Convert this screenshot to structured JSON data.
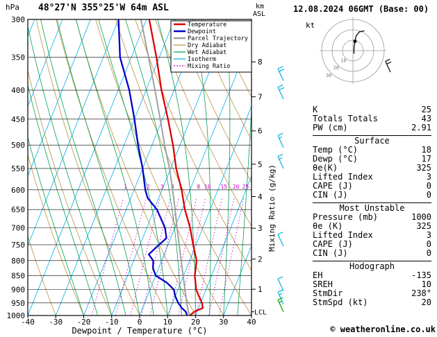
{
  "header": {
    "pressure_unit_label": "hPa",
    "station_title": "48°27'N 355°25'W 64m ASL",
    "datetime_title": "12.08.2024 06GMT (Base: 00)"
  },
  "axes": {
    "pressure_ticks": [
      300,
      350,
      400,
      450,
      500,
      550,
      600,
      650,
      700,
      750,
      800,
      850,
      900,
      950,
      1000
    ],
    "temp_ticks": [
      -40,
      -30,
      -20,
      -10,
      0,
      10,
      20,
      30,
      40
    ],
    "x_label": "Dewpoint / Temperature (°C)",
    "km_label_top": "km",
    "km_label_sub": "ASL",
    "km_ticks": [
      8,
      7,
      6,
      5,
      4,
      3,
      2,
      1
    ],
    "lcl_label": "LCL",
    "mixing_axis_label": "Mixing Ratio (g/kg)"
  },
  "legend": {
    "items": [
      {
        "label": "Temperature",
        "color_key": "temperature",
        "thick": true
      },
      {
        "label": "Dewpoint",
        "color_key": "dewpoint",
        "thick": true
      },
      {
        "label": "Parcel Trajectory",
        "color_key": "parcel",
        "thick": true
      },
      {
        "label": "Dry Adiabat",
        "color_key": "dry_adiabat"
      },
      {
        "label": "Wet Adiabat",
        "color_key": "wet_adiabat"
      },
      {
        "label": "Isotherm",
        "color_key": "isotherm"
      },
      {
        "label": "Mixing Ratio",
        "color_key": "mixing_ratio",
        "dotted": true
      }
    ]
  },
  "colors": {
    "temperature": "#dd0000",
    "dewpoint": "#0000cc",
    "parcel": "#a0a0a0",
    "dry_adiabat": "#bb8f3c",
    "wet_adiabat": "#00a050",
    "isotherm": "#00b0f0",
    "mixing_ratio": "#cc00cc",
    "wind_barb": "#00b0e0",
    "surface_wind_barb": "#00a000",
    "hodograph_grid": "#999999",
    "frame": "#000000"
  },
  "chart_data": {
    "type": "line",
    "subtype": "skew-T log-p thermodynamic sounding",
    "units": "points are [pressure_hPa, temperature_C]",
    "pressure_range": [
      300,
      1000
    ],
    "temperature_range": [
      -40,
      40
    ],
    "temperature_points": [
      [
        1000,
        18
      ],
      [
        985,
        19
      ],
      [
        970,
        21.5
      ],
      [
        950,
        20.5
      ],
      [
        925,
        18.5
      ],
      [
        900,
        16.5
      ],
      [
        850,
        14
      ],
      [
        800,
        12.5
      ],
      [
        750,
        9
      ],
      [
        700,
        5.5
      ],
      [
        650,
        1
      ],
      [
        600,
        -3
      ],
      [
        550,
        -8
      ],
      [
        500,
        -12.5
      ],
      [
        450,
        -18
      ],
      [
        400,
        -24.5
      ],
      [
        350,
        -31
      ],
      [
        300,
        -39
      ]
    ],
    "dewpoint_points": [
      [
        1000,
        17
      ],
      [
        985,
        16
      ],
      [
        970,
        14
      ],
      [
        950,
        12
      ],
      [
        925,
        10
      ],
      [
        900,
        8.5
      ],
      [
        875,
        5
      ],
      [
        850,
        0
      ],
      [
        825,
        -2
      ],
      [
        800,
        -3
      ],
      [
        780,
        -5.5
      ],
      [
        760,
        -4
      ],
      [
        730,
        -1.5
      ],
      [
        700,
        -3.5
      ],
      [
        650,
        -9
      ],
      [
        620,
        -14
      ],
      [
        600,
        -16
      ],
      [
        550,
        -20
      ],
      [
        500,
        -25
      ],
      [
        450,
        -30
      ],
      [
        400,
        -36
      ],
      [
        350,
        -44
      ],
      [
        300,
        -50
      ]
    ],
    "parcel_points": [
      [
        1000,
        18
      ],
      [
        985,
        16.9
      ],
      [
        950,
        15
      ],
      [
        900,
        12.5
      ],
      [
        850,
        9.8
      ],
      [
        800,
        7
      ],
      [
        750,
        4
      ],
      [
        700,
        0.8
      ],
      [
        650,
        -2.5
      ],
      [
        600,
        -6.2
      ],
      [
        550,
        -10.4
      ],
      [
        500,
        -15.5
      ],
      [
        450,
        -20.8
      ],
      [
        400,
        -26.8
      ],
      [
        350,
        -33.8
      ],
      [
        300,
        -42
      ]
    ],
    "mixing_ratio_lines": [
      1,
      2,
      3,
      4,
      5,
      8,
      10,
      15,
      20,
      25
    ],
    "km_asl_ticks": [
      8,
      7,
      6,
      5,
      4,
      3,
      2,
      1
    ],
    "wind_barbs": [
      {
        "pressure": 385,
        "speed_kt": 20
      },
      {
        "pressure": 415,
        "speed_kt": 20
      },
      {
        "pressure": 505,
        "speed_kt": 15
      },
      {
        "pressure": 550,
        "speed_kt": 15
      },
      {
        "pressure": 755,
        "speed_kt": 10
      },
      {
        "pressure": 905,
        "speed_kt": 10
      },
      {
        "pressure": 955,
        "speed_kt": 15
      },
      {
        "pressure": 985,
        "speed_kt": 15,
        "surface_wind": true
      }
    ]
  },
  "hodograph": {
    "unit_label": "kt",
    "ring_values_kt": [
      10,
      20,
      30
    ],
    "trace_uv_kt": [
      [
        1,
        -3
      ],
      [
        1,
        3
      ],
      [
        2,
        9
      ],
      [
        3,
        14
      ],
      [
        6,
        18
      ],
      [
        11,
        19
      ]
    ],
    "storm_dot_uv_kt": [
      2,
      9
    ],
    "marker_barb_speed_kt": 20
  },
  "panel": {
    "indices": [
      {
        "label": "K",
        "value": "25"
      },
      {
        "label": "Totals Totals",
        "value": "43"
      },
      {
        "label": "PW (cm)",
        "value": "2.91"
      }
    ],
    "sections": [
      {
        "title": "Surface",
        "rows": [
          {
            "label": "Temp (°C)",
            "value": "18"
          },
          {
            "label": "Dewp (°C)",
            "value": "17"
          },
          {
            "label": "θe(K)",
            "value": "325"
          },
          {
            "label": "Lifted Index",
            "value": "3"
          },
          {
            "label": "CAPE (J)",
            "value": "0"
          },
          {
            "label": "CIN (J)",
            "value": "0"
          }
        ]
      },
      {
        "title": "Most Unstable",
        "rows": [
          {
            "label": "Pressure (mb)",
            "value": "1000"
          },
          {
            "label": "θe (K)",
            "value": "325"
          },
          {
            "label": "Lifted Index",
            "value": "3"
          },
          {
            "label": "CAPE (J)",
            "value": "0"
          },
          {
            "label": "CIN (J)",
            "value": "0"
          }
        ]
      },
      {
        "title": "Hodograph",
        "rows": [
          {
            "label": "EH",
            "value": "-135"
          },
          {
            "label": "SREH",
            "value": "10"
          },
          {
            "label": "StmDir",
            "value": "238°"
          },
          {
            "label": "StmSpd (kt)",
            "value": "20"
          }
        ]
      }
    ]
  },
  "footer": {
    "copyright": "© weatheronline.co.uk"
  }
}
